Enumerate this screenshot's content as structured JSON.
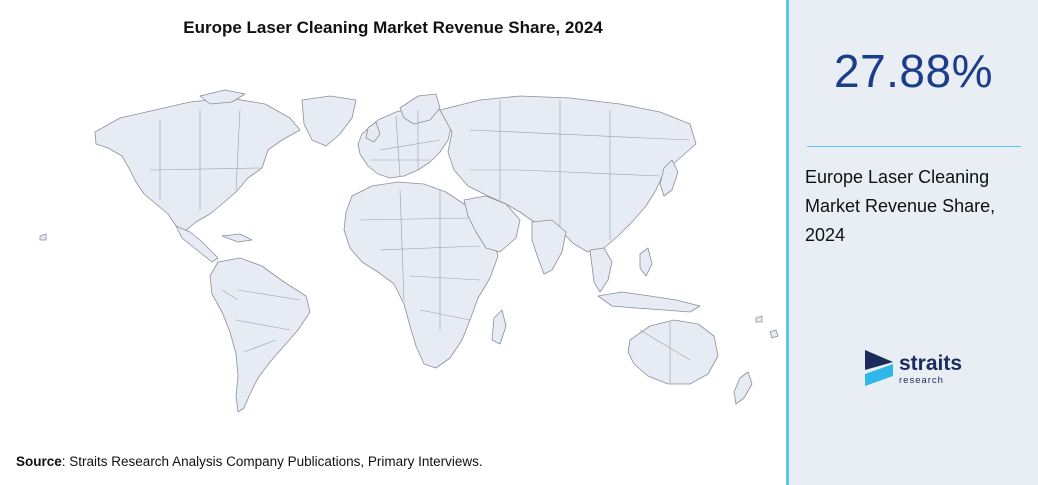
{
  "title": "Europe Laser Cleaning Market Revenue Share, 2024",
  "source": {
    "label": "Source",
    "text": ": Straits Research Analysis Company Publications, Primary Interviews."
  },
  "stat": {
    "value": "27.88%",
    "description": "Europe Laser Cleaning Market Revenue Share, 2024"
  },
  "logo": {
    "word": "straits",
    "sub": "research"
  },
  "colors": {
    "accent": "#5bc4f0",
    "stat_value": "#1b3d8a",
    "land": "#e7ebf3",
    "panel": "#e9edf4"
  }
}
